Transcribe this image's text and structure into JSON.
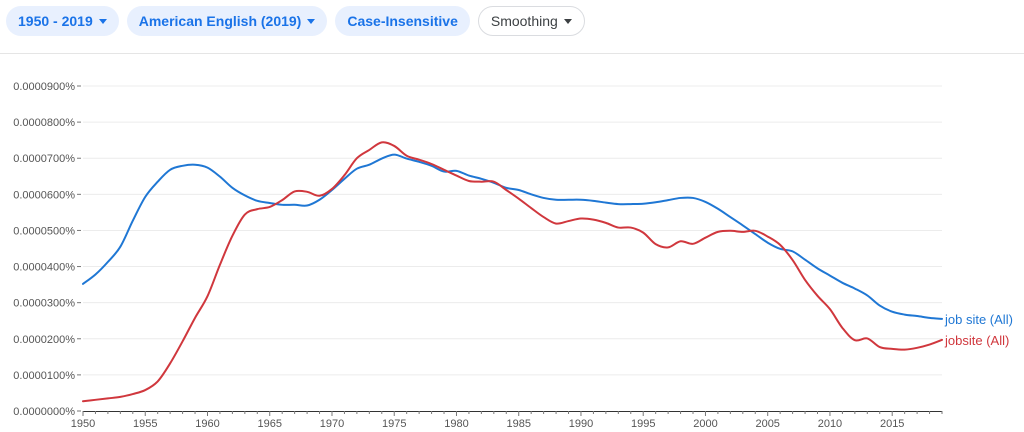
{
  "controls": {
    "year_range": "1950 - 2019",
    "corpus": "American English (2019)",
    "case": "Case-Insensitive",
    "smoothing": "Smoothing"
  },
  "colors": {
    "job_site": "#1f77d4",
    "jobsite": "#d0373d",
    "chip_text": "#1a73e8",
    "chip_bg": "#e8f0fe"
  },
  "chart_data": {
    "type": "line",
    "title": "",
    "xlabel": "",
    "ylabel": "",
    "xlim": [
      1950,
      2019
    ],
    "ylim": [
      0,
      9e-07
    ],
    "grid": true,
    "legend": "right, at line ends",
    "x_ticks": [
      1950,
      1955,
      1960,
      1965,
      1970,
      1975,
      1980,
      1985,
      1990,
      1995,
      2000,
      2005,
      2010,
      2015
    ],
    "x_tick_labels": [
      "1950",
      "1955",
      "1960",
      "1965",
      "1970",
      "1975",
      "1980",
      "1985",
      "1990",
      "1995",
      "2000",
      "2005",
      "2010",
      "2015"
    ],
    "y_ticks": [
      0,
      1e-07,
      2e-07,
      3e-07,
      4e-07,
      5e-07,
      6e-07,
      7e-07,
      8e-07,
      9e-07
    ],
    "y_tick_labels": [
      "0.0000000%",
      "0.0000100%",
      "0.0000200%",
      "0.0000300%",
      "0.0000400%",
      "0.0000500%",
      "0.0000600%",
      "0.0000700%",
      "0.0000800%",
      "0.0000900%"
    ],
    "series": [
      {
        "name": "job site (All)",
        "color": "#1f77d4",
        "points": [
          [
            1950,
            3.52e-07
          ],
          [
            1951,
            3.78e-07
          ],
          [
            1952,
            4.13e-07
          ],
          [
            1953,
            4.55e-07
          ],
          [
            1954,
            5.27e-07
          ],
          [
            1955,
            5.93e-07
          ],
          [
            1956,
            6.35e-07
          ],
          [
            1957,
            6.68e-07
          ],
          [
            1958,
            6.79e-07
          ],
          [
            1959,
            6.82e-07
          ],
          [
            1960,
            6.74e-07
          ],
          [
            1961,
            6.49e-07
          ],
          [
            1962,
            6.18e-07
          ],
          [
            1963,
            5.97e-07
          ],
          [
            1964,
            5.82e-07
          ],
          [
            1965,
            5.76e-07
          ],
          [
            1966,
            5.71e-07
          ],
          [
            1967,
            5.71e-07
          ],
          [
            1968,
            5.69e-07
          ],
          [
            1969,
            5.85e-07
          ],
          [
            1970,
            6.12e-07
          ],
          [
            1971,
            6.43e-07
          ],
          [
            1972,
            6.71e-07
          ],
          [
            1973,
            6.82e-07
          ],
          [
            1974,
            6.99e-07
          ],
          [
            1975,
            7.1e-07
          ],
          [
            1976,
            6.99e-07
          ],
          [
            1977,
            6.9e-07
          ],
          [
            1978,
            6.79e-07
          ],
          [
            1979,
            6.63e-07
          ],
          [
            1980,
            6.65e-07
          ],
          [
            1981,
            6.52e-07
          ],
          [
            1982,
            6.43e-07
          ],
          [
            1983,
            6.32e-07
          ],
          [
            1984,
            6.18e-07
          ],
          [
            1985,
            6.12e-07
          ],
          [
            1986,
            6e-07
          ],
          [
            1987,
            5.9e-07
          ],
          [
            1988,
            5.85e-07
          ],
          [
            1989,
            5.85e-07
          ],
          [
            1990,
            5.85e-07
          ],
          [
            1991,
            5.82e-07
          ],
          [
            1992,
            5.77e-07
          ],
          [
            1993,
            5.73e-07
          ],
          [
            1994,
            5.73e-07
          ],
          [
            1995,
            5.74e-07
          ],
          [
            1996,
            5.78e-07
          ],
          [
            1997,
            5.84e-07
          ],
          [
            1998,
            5.9e-07
          ],
          [
            1999,
            5.9e-07
          ],
          [
            2000,
            5.79e-07
          ],
          [
            2001,
            5.6e-07
          ],
          [
            2002,
            5.37e-07
          ],
          [
            2003,
            5.14e-07
          ],
          [
            2004,
            4.9e-07
          ],
          [
            2005,
            4.66e-07
          ],
          [
            2006,
            4.49e-07
          ],
          [
            2007,
            4.42e-07
          ],
          [
            2008,
            4.19e-07
          ],
          [
            2009,
            3.95e-07
          ],
          [
            2010,
            3.75e-07
          ],
          [
            2011,
            3.55e-07
          ],
          [
            2012,
            3.39e-07
          ],
          [
            2013,
            3.2e-07
          ],
          [
            2014,
            2.92e-07
          ],
          [
            2015,
            2.75e-07
          ],
          [
            2016,
            2.67e-07
          ],
          [
            2017,
            2.63e-07
          ],
          [
            2018,
            2.58e-07
          ],
          [
            2019,
            2.55e-07
          ]
        ]
      },
      {
        "name": "jobsite (All)",
        "color": "#d0373d",
        "points": [
          [
            1950,
            2.7e-08
          ],
          [
            1951,
            3.1e-08
          ],
          [
            1952,
            3.5e-08
          ],
          [
            1953,
            3.9e-08
          ],
          [
            1954,
            4.7e-08
          ],
          [
            1955,
            5.8e-08
          ],
          [
            1956,
            8.2e-08
          ],
          [
            1957,
            1.32e-07
          ],
          [
            1958,
            1.93e-07
          ],
          [
            1959,
            2.58e-07
          ],
          [
            1960,
            3.18e-07
          ],
          [
            1961,
            4.05e-07
          ],
          [
            1962,
            4.85e-07
          ],
          [
            1963,
            5.44e-07
          ],
          [
            1964,
            5.59e-07
          ],
          [
            1965,
            5.65e-07
          ],
          [
            1966,
            5.84e-07
          ],
          [
            1967,
            6.08e-07
          ],
          [
            1968,
            6.07e-07
          ],
          [
            1969,
            5.96e-07
          ],
          [
            1970,
            6.15e-07
          ],
          [
            1971,
            6.53e-07
          ],
          [
            1972,
            7e-07
          ],
          [
            1973,
            7.23e-07
          ],
          [
            1974,
            7.44e-07
          ],
          [
            1975,
            7.34e-07
          ],
          [
            1976,
            7.07e-07
          ],
          [
            1977,
            6.96e-07
          ],
          [
            1978,
            6.84e-07
          ],
          [
            1979,
            6.68e-07
          ],
          [
            1980,
            6.52e-07
          ],
          [
            1981,
            6.37e-07
          ],
          [
            1982,
            6.35e-07
          ],
          [
            1983,
            6.35e-07
          ],
          [
            1984,
            6.12e-07
          ],
          [
            1985,
            5.88e-07
          ],
          [
            1986,
            5.62e-07
          ],
          [
            1987,
            5.37e-07
          ],
          [
            1988,
            5.19e-07
          ],
          [
            1989,
            5.26e-07
          ],
          [
            1990,
            5.33e-07
          ],
          [
            1991,
            5.3e-07
          ],
          [
            1992,
            5.21e-07
          ],
          [
            1993,
            5.08e-07
          ],
          [
            1994,
            5.08e-07
          ],
          [
            1995,
            4.94e-07
          ],
          [
            1996,
            4.62e-07
          ],
          [
            1997,
            4.53e-07
          ],
          [
            1998,
            4.7e-07
          ],
          [
            1999,
            4.63e-07
          ],
          [
            2000,
            4.8e-07
          ],
          [
            2001,
            4.96e-07
          ],
          [
            2002,
            4.99e-07
          ],
          [
            2003,
            4.96e-07
          ],
          [
            2004,
            4.99e-07
          ],
          [
            2005,
            4.83e-07
          ],
          [
            2006,
            4.6e-07
          ],
          [
            2007,
            4.18e-07
          ],
          [
            2008,
            3.63e-07
          ],
          [
            2009,
            3.19e-07
          ],
          [
            2010,
            2.82e-07
          ],
          [
            2011,
            2.3e-07
          ],
          [
            2012,
            1.96e-07
          ],
          [
            2013,
            2.01e-07
          ],
          [
            2014,
            1.77e-07
          ],
          [
            2015,
            1.72e-07
          ],
          [
            2016,
            1.7e-07
          ],
          [
            2017,
            1.75e-07
          ],
          [
            2018,
            1.84e-07
          ],
          [
            2019,
            1.97e-07
          ]
        ]
      }
    ]
  }
}
